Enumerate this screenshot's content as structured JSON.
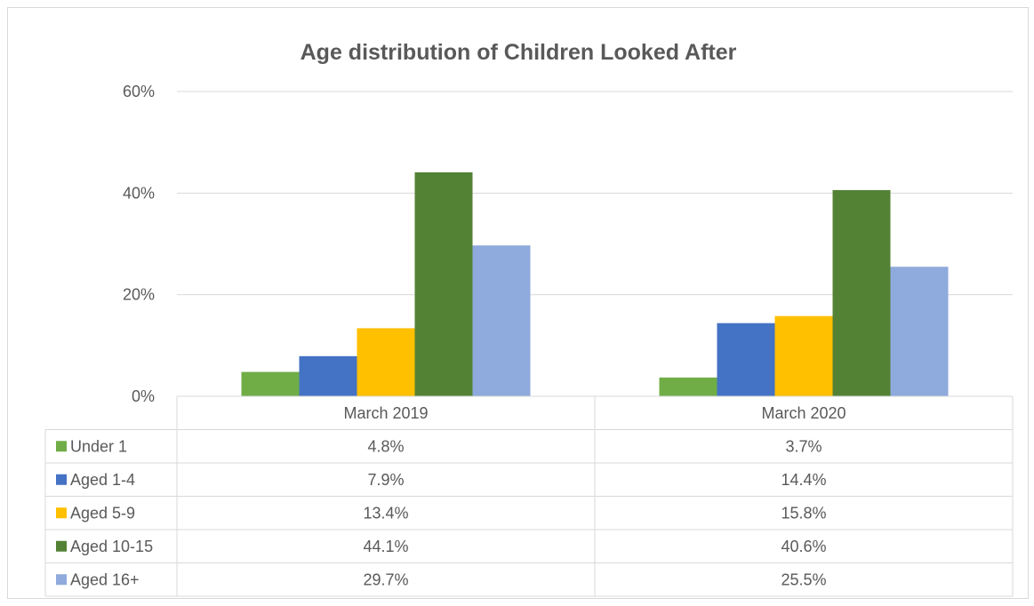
{
  "chart_data": {
    "type": "bar",
    "title": "Age distribution of Children Looked After",
    "categories": [
      "March 2019",
      "March 2020"
    ],
    "series": [
      {
        "name": "Under 1",
        "values": [
          4.8,
          3.7
        ],
        "labels": [
          "4.8%",
          "3.7%"
        ],
        "color": "#70ad47"
      },
      {
        "name": "Aged 1-4",
        "values": [
          7.9,
          14.4
        ],
        "labels": [
          "7.9%",
          "14.4%"
        ],
        "color": "#4472c4"
      },
      {
        "name": "Aged 5-9",
        "values": [
          13.4,
          15.8
        ],
        "labels": [
          "13.4%",
          "15.8%"
        ],
        "color": "#ffc000"
      },
      {
        "name": "Aged 10-15",
        "values": [
          44.1,
          40.6
        ],
        "labels": [
          "44.1%",
          "40.6%"
        ],
        "color": "#548235"
      },
      {
        "name": "Aged 16+",
        "values": [
          29.7,
          25.5
        ],
        "labels": [
          "29.7%",
          "25.5%"
        ],
        "color": "#8faadc"
      }
    ],
    "ylim": [
      0,
      60
    ],
    "yticks": [
      0,
      20,
      40,
      60
    ],
    "ytick_labels": [
      "0%",
      "20%",
      "40%",
      "60%"
    ],
    "grid": true,
    "legend": "data table below chart"
  }
}
